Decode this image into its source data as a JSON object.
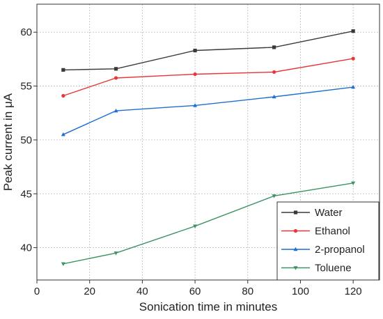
{
  "chart_data": {
    "type": "line",
    "xlabel": "Sonication time in minutes",
    "ylabel": "Peak current in μA",
    "xlim": [
      0,
      130
    ],
    "ylim": [
      37,
      62.6
    ],
    "xticks": [
      0,
      20,
      40,
      60,
      80,
      100,
      120
    ],
    "yticks": [
      40,
      45,
      50,
      55,
      60
    ],
    "grid": true,
    "legend_position": "bottom-right",
    "x": [
      10,
      30,
      60,
      90,
      120
    ],
    "series": [
      {
        "name": "Water",
        "values": [
          56.5,
          56.6,
          58.3,
          58.6,
          60.1
        ],
        "color": "#3a3a3a",
        "marker": "square"
      },
      {
        "name": "Ethanol",
        "values": [
          54.1,
          55.75,
          56.1,
          56.3,
          57.55
        ],
        "color": "#e8363a",
        "marker": "circle"
      },
      {
        "name": "2-propanol",
        "values": [
          50.5,
          52.7,
          53.2,
          54.0,
          54.9
        ],
        "color": "#1d6fd1",
        "marker": "triangle-up"
      },
      {
        "name": "Toluene",
        "values": [
          38.5,
          39.5,
          42.0,
          44.8,
          46.0
        ],
        "color": "#3a9463",
        "marker": "triangle-down"
      }
    ]
  }
}
